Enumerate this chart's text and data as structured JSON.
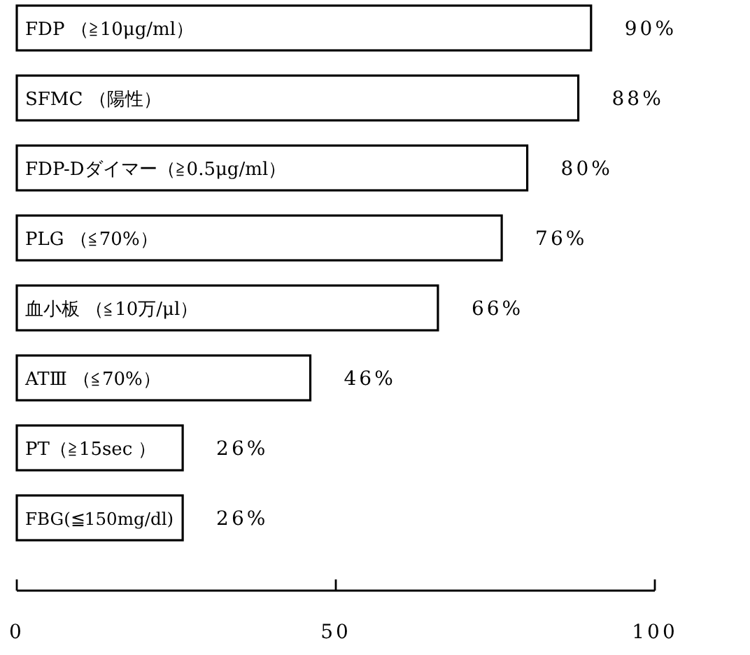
{
  "chart_data": {
    "type": "bar",
    "orientation": "horizontal",
    "categories": [
      "FDP （≧10μg/ml）",
      "SFMC （陽性）",
      "FDP-Dダイマー（≧0.5μg/ml）",
      "PLG （≦70%）",
      "血小板 （≦10万/μl）",
      "ATⅢ （≦70%）",
      "PT（≧15sec ）",
      "FBG(≦150mg/dl)"
    ],
    "values": [
      90,
      88,
      80,
      76,
      66,
      46,
      26,
      26
    ],
    "value_labels": [
      "90%",
      "88%",
      "80%",
      "76%",
      "66%",
      "46%",
      "26%",
      "26%"
    ],
    "color": "#ffffff",
    "xlim": [
      0,
      100
    ],
    "xticks": [
      0,
      50,
      100
    ],
    "grid": false
  }
}
